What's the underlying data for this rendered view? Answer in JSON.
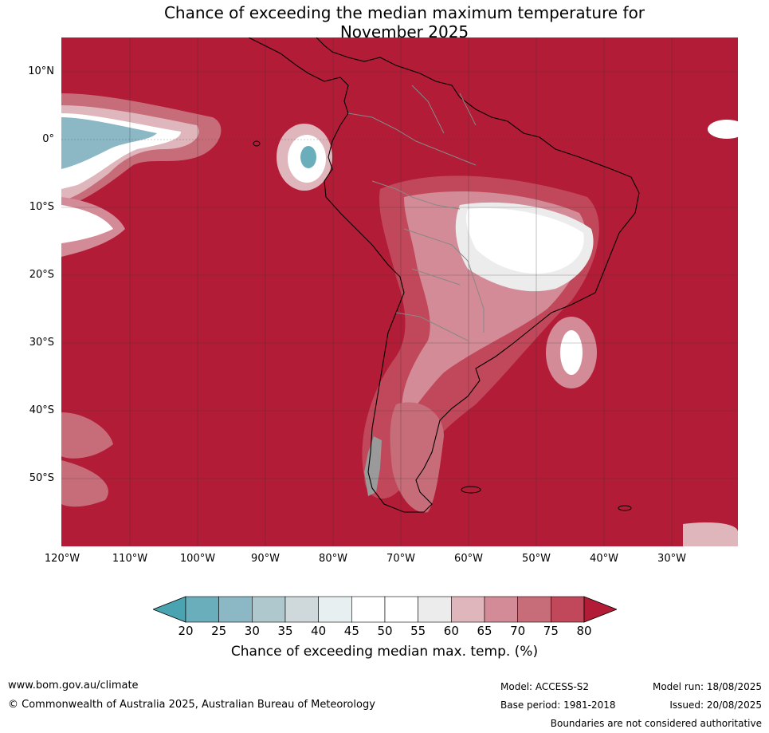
{
  "title_line1": "Chance of exceeding the median maximum temperature for",
  "title_line2": "November 2025",
  "lat_labels": [
    "10°N",
    "0°",
    "10°S",
    "20°S",
    "30°S",
    "40°S",
    "50°S"
  ],
  "lon_labels": [
    "120°W",
    "110°W",
    "100°W",
    "90°W",
    "80°W",
    "70°W",
    "60°W",
    "50°W",
    "40°W",
    "30°W"
  ],
  "colorbar": {
    "ticks": [
      "20",
      "25",
      "30",
      "35",
      "40",
      "45",
      "50",
      "55",
      "60",
      "65",
      "70",
      "75",
      "80"
    ],
    "colors": [
      "#4aa3b1",
      "#6aadbb",
      "#8bb8c4",
      "#aec8ce",
      "#cfd9dc",
      "#e8eff1",
      "#ffffff",
      "#ffffff",
      "#ececec",
      "#e0b6bd",
      "#d38c97",
      "#c76d7a",
      "#c1485a",
      "#b21c37"
    ],
    "label": "Chance of exceeding median max. temp. (%)"
  },
  "legend_colors": {
    "map_dominant": "#b21c37",
    "above_80": "#b21c37",
    "below_20": "#4aa3b1"
  },
  "footer": {
    "website": "www.bom.gov.au/climate",
    "copyright": "© Commonwealth of Australia 2025, Australian Bureau of Meteorology",
    "model": "Model: ACCESS-S2",
    "base_period": "Base period: 1981-2018",
    "model_run": "Model run: 18/08/2025",
    "issued": "Issued: 20/08/2025",
    "disclaimer": "Boundaries are not considered authoritative"
  }
}
